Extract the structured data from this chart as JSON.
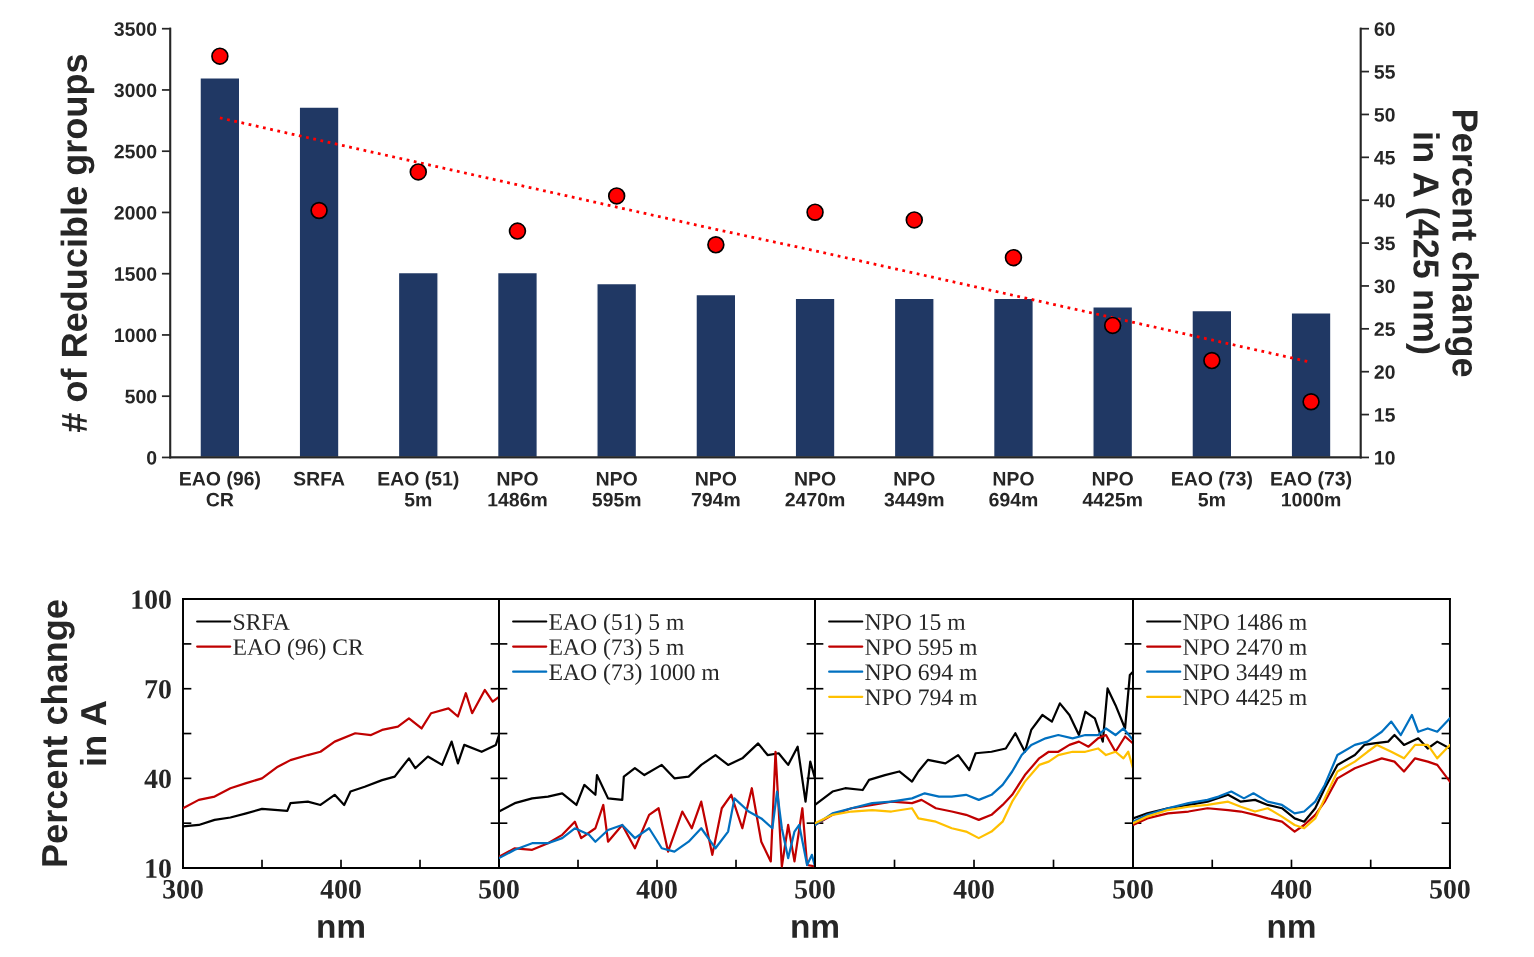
{
  "chart_data": [
    {
      "type": "bar",
      "categories": [
        "EAO (96)\nCR",
        "SRFA",
        "EAO (51)\n5m",
        "NPO\n1486m",
        "NPO\n595m",
        "NPO\n794m",
        "NPO\n2470m",
        "NPO\n3449m",
        "NPO\n694m",
        "NPO\n4425m",
        "EAO (73)\n5m",
        "EAO (73)\n1000m"
      ],
      "ylabel": "# of Reducible groups",
      "y2label": "Percent change\nin A (425 nm)",
      "ylim": [
        0,
        3500
      ],
      "yticks": [
        0,
        500,
        1000,
        1500,
        2000,
        2500,
        3000,
        3500
      ],
      "y2lim": [
        10,
        60
      ],
      "y2ticks": [
        10,
        15,
        20,
        25,
        30,
        35,
        40,
        45,
        50,
        55,
        60
      ],
      "grid": false,
      "legend": false,
      "series": [
        {
          "type": "bar",
          "color": "#203864",
          "values": [
            3100,
            2860,
            1510,
            1510,
            1420,
            1330,
            1300,
            1300,
            1300,
            1230,
            1200,
            1180
          ]
        },
        {
          "type": "scatter",
          "axis": "y2",
          "color": "#ff0000",
          "marker": "circle",
          "values": [
            56.8,
            38.8,
            43.3,
            36.4,
            40.5,
            34.8,
            38.6,
            37.7,
            33.3,
            25.4,
            21.3,
            16.5
          ]
        },
        {
          "type": "line",
          "axis": "y2",
          "color": "#ff0000",
          "line_style": "dotted",
          "values": [
            49.6,
            47.0,
            44.4,
            41.8,
            39.2,
            36.6,
            34.1,
            31.5,
            28.9,
            26.3,
            23.7,
            21.1
          ]
        }
      ]
    },
    {
      "type": "line",
      "ylabel": "Percent change\nin A",
      "xlabel": "nm",
      "xlim": [
        300,
        500
      ],
      "xticks": [
        300,
        {
          "value": 350,
          "label": null
        },
        400,
        {
          "value": 450,
          "label": null
        },
        500
      ],
      "ylim": [
        10,
        100
      ],
      "yticks": [
        10,
        {
          "value": 25,
          "label": null
        },
        40,
        {
          "value": 55,
          "label": null
        },
        70,
        {
          "value": 85,
          "label": null
        },
        100
      ],
      "legend": "top left",
      "grid": false,
      "series": [
        {
          "name": "SRFA",
          "color": "#000000",
          "x": [
            300,
            310,
            320,
            330,
            340,
            350,
            360,
            366,
            368,
            379,
            387,
            396,
            402,
            406,
            415,
            426,
            434,
            443,
            447,
            455,
            464,
            470,
            474,
            478,
            489,
            498,
            500
          ],
          "values": [
            23.9,
            24.4,
            26.1,
            26.9,
            28.3,
            29.8,
            29.4,
            29.1,
            31.7,
            32.2,
            31.1,
            34.5,
            31.1,
            35.6,
            37.2,
            39.4,
            40.6,
            46.7,
            43.4,
            47.3,
            44.5,
            52.3,
            45.0,
            51.2,
            48.9,
            51.2,
            54.5
          ]
        },
        {
          "name": "EAO (96) CR",
          "color": "#c00000",
          "x": [
            300,
            310,
            320,
            330,
            340,
            350,
            360,
            368,
            379,
            387,
            396,
            409,
            419,
            426,
            436,
            443,
            451,
            457,
            468,
            474,
            479,
            483,
            491,
            496,
            500
          ],
          "values": [
            30.0,
            32.8,
            33.9,
            36.7,
            38.4,
            40.0,
            43.9,
            46.1,
            47.8,
            48.9,
            52.3,
            55.1,
            54.5,
            56.2,
            57.3,
            60.1,
            56.7,
            61.8,
            63.4,
            60.7,
            68.5,
            61.8,
            69.6,
            65.7,
            67.3
          ]
        }
      ]
    },
    {
      "type": "line",
      "xlabel": "nm",
      "xlim": [
        300,
        500
      ],
      "xticks": [
        {
          "value": 300,
          "label": null
        },
        {
          "value": 350,
          "label": null
        },
        400,
        {
          "value": 450,
          "label": null
        },
        500
      ],
      "ylim": [
        10,
        100
      ],
      "yticks": [
        10,
        {
          "value": 25,
          "label": null
        },
        40,
        {
          "value": 55,
          "label": null
        },
        70,
        {
          "value": 85,
          "label": null
        },
        100
      ],
      "tick_labels": "x",
      "legend": "top left",
      "grid": false,
      "series": [
        {
          "name": "EAO (51) 5 m",
          "color": "#000000",
          "x": [
            300,
            310,
            321,
            331,
            340,
            349,
            354,
            361,
            362,
            369,
            378,
            379,
            386,
            392,
            403,
            411,
            420,
            428,
            437,
            445,
            454,
            464,
            470,
            477,
            483,
            489,
            494,
            497,
            500
          ],
          "values": [
            28.9,
            31.7,
            33.3,
            33.9,
            35.0,
            31.1,
            37.8,
            34.5,
            41.1,
            33.3,
            32.8,
            40.6,
            43.4,
            41.1,
            44.5,
            40.0,
            40.6,
            44.5,
            47.8,
            44.5,
            46.7,
            51.7,
            47.8,
            48.4,
            44.5,
            50.6,
            32.2,
            45.6,
            40.0
          ]
        },
        {
          "name": "EAO (73) 5 m",
          "color": "#c00000",
          "x": [
            300,
            310,
            321,
            331,
            340,
            348,
            352,
            361,
            366,
            369,
            378,
            386,
            395,
            401,
            407,
            416,
            422,
            428,
            435,
            441,
            447,
            454,
            460,
            466,
            472,
            475,
            479,
            483,
            487,
            492,
            495,
            500
          ],
          "values": [
            13.8,
            16.6,
            16.1,
            18.3,
            21.1,
            25.5,
            20.0,
            23.3,
            31.1,
            18.8,
            24.4,
            16.6,
            27.8,
            30.0,
            15.5,
            28.9,
            23.3,
            32.2,
            14.4,
            30.0,
            34.5,
            23.3,
            36.7,
            18.8,
            12.2,
            48.9,
            10.5,
            24.4,
            12.2,
            30.0,
            11.0,
            10.5
          ]
        },
        {
          "name": "EAO (73) 1000 m",
          "color": "#0070c0",
          "x": [
            300,
            310,
            321,
            331,
            340,
            348,
            357,
            361,
            369,
            378,
            386,
            395,
            403,
            411,
            420,
            428,
            437,
            445,
            449,
            458,
            466,
            473,
            476,
            479,
            483,
            487,
            490,
            495,
            498,
            500
          ],
          "values": [
            13.3,
            16.1,
            18.3,
            18.3,
            20.0,
            23.3,
            21.1,
            18.8,
            22.7,
            24.4,
            20.0,
            23.3,
            16.6,
            15.5,
            18.8,
            23.3,
            16.6,
            22.2,
            33.3,
            28.9,
            26.6,
            23.3,
            35.6,
            23.3,
            13.3,
            22.2,
            24.4,
            11.0,
            14.4,
            10.5
          ]
        }
      ]
    },
    {
      "type": "line",
      "xlim": [
        300,
        500
      ],
      "xticks": [
        {
          "value": 300,
          "label": null
        },
        {
          "value": 350,
          "label": null
        },
        400,
        {
          "value": 450,
          "label": null
        },
        500
      ],
      "ylim": [
        10,
        100
      ],
      "yticks": [
        10,
        {
          "value": 25,
          "label": null
        },
        40,
        {
          "value": 55,
          "label": null
        },
        70,
        {
          "value": 85,
          "label": null
        },
        100
      ],
      "tick_labels": "x",
      "legend": "top left",
      "grid": false,
      "series": [
        {
          "name": "NPO 15 m",
          "color": "#000000",
          "x": [
            300,
            311,
            319,
            330,
            334,
            344,
            353,
            361,
            365,
            371,
            382,
            390,
            397,
            401,
            411,
            420,
            426,
            432,
            436,
            443,
            449,
            454,
            460,
            466,
            470,
            476,
            481,
            484,
            489,
            495,
            498,
            500
          ],
          "values": [
            31.1,
            35.6,
            36.7,
            36.1,
            39.5,
            41.1,
            42.3,
            38.9,
            42.3,
            46.2,
            45.0,
            47.8,
            42.8,
            48.4,
            48.9,
            50.0,
            55.1,
            48.9,
            56.2,
            61.2,
            59.0,
            65.1,
            61.2,
            54.5,
            62.3,
            60.1,
            52.3,
            70.1,
            64.5,
            56.7,
            74.6,
            75.7
          ]
        },
        {
          "name": "NPO 595 m",
          "color": "#c00000",
          "x": [
            300,
            311,
            323,
            336,
            348,
            361,
            367,
            376,
            386,
            395,
            403,
            411,
            418,
            424,
            432,
            441,
            447,
            453,
            460,
            466,
            472,
            478,
            483,
            489,
            495,
            500
          ],
          "values": [
            24.4,
            27.8,
            30.0,
            31.1,
            32.2,
            31.7,
            32.8,
            30.0,
            28.9,
            27.8,
            26.1,
            27.8,
            31.1,
            34.5,
            41.1,
            46.7,
            48.9,
            48.9,
            51.2,
            52.3,
            50.6,
            53.4,
            54.5,
            48.9,
            54.0,
            51.7
          ]
        },
        {
          "name": "NPO 694 m",
          "color": "#0070c0",
          "x": [
            300,
            311,
            323,
            336,
            348,
            361,
            369,
            378,
            386,
            395,
            403,
            411,
            418,
            424,
            430,
            436,
            445,
            453,
            462,
            470,
            478,
            483,
            489,
            494,
            500
          ],
          "values": [
            24.4,
            28.3,
            30.0,
            31.7,
            32.2,
            33.3,
            35.0,
            33.9,
            33.9,
            34.5,
            32.8,
            34.5,
            37.8,
            42.3,
            47.8,
            51.2,
            53.4,
            54.5,
            53.4,
            54.5,
            54.5,
            56.7,
            54.5,
            56.7,
            52.8
          ]
        },
        {
          "name": "NPO 794 m",
          "color": "#ffc000",
          "x": [
            300,
            311,
            323,
            336,
            348,
            361,
            365,
            376,
            386,
            395,
            403,
            411,
            418,
            424,
            432,
            441,
            447,
            453,
            462,
            470,
            478,
            483,
            489,
            494,
            497,
            500
          ],
          "values": [
            25.0,
            27.8,
            28.9,
            29.4,
            28.9,
            30.0,
            26.6,
            25.5,
            23.3,
            22.2,
            20.0,
            22.2,
            25.5,
            32.2,
            38.9,
            44.5,
            45.6,
            47.8,
            48.9,
            48.9,
            50.0,
            47.8,
            48.9,
            46.7,
            48.9,
            43.4
          ]
        }
      ]
    },
    {
      "type": "line",
      "xlabel": "nm",
      "xlim": [
        300,
        500
      ],
      "xticks": [
        {
          "value": 300,
          "label": null
        },
        {
          "value": 350,
          "label": null
        },
        400,
        {
          "value": 450,
          "label": null
        },
        500
      ],
      "ylim": [
        10,
        100
      ],
      "yticks": [
        10,
        {
          "value": 25,
          "label": null
        },
        40,
        {
          "value": 55,
          "label": null
        },
        70,
        {
          "value": 85,
          "label": null
        },
        100
      ],
      "tick_labels": "x",
      "legend": "top left",
      "grid": false,
      "series": [
        {
          "name": "NPO 1486 m",
          "color": "#000000",
          "x": [
            300,
            309,
            322,
            335,
            347,
            360,
            368,
            377,
            385,
            394,
            402,
            408,
            415,
            421,
            429,
            440,
            446,
            452,
            461,
            465,
            471,
            480,
            486,
            492,
            500
          ],
          "values": [
            26.6,
            28.3,
            30.0,
            31.1,
            32.2,
            34.5,
            32.2,
            32.8,
            31.1,
            30.0,
            26.6,
            25.5,
            30.0,
            36.7,
            44.5,
            47.8,
            51.2,
            51.7,
            52.3,
            54.5,
            51.2,
            53.4,
            50.0,
            52.3,
            50.0
          ]
        },
        {
          "name": "NPO 2470 m",
          "color": "#c00000",
          "x": [
            300,
            309,
            322,
            335,
            347,
            360,
            368,
            377,
            385,
            394,
            402,
            408,
            415,
            421,
            429,
            440,
            448,
            457,
            465,
            471,
            478,
            486,
            492,
            500
          ],
          "values": [
            24.4,
            26.6,
            28.3,
            28.9,
            30.0,
            29.4,
            28.9,
            27.8,
            26.6,
            25.5,
            22.2,
            24.4,
            27.8,
            32.2,
            40.0,
            43.4,
            45.0,
            46.7,
            45.6,
            42.3,
            46.7,
            45.6,
            44.5,
            38.9
          ]
        },
        {
          "name": "NPO 3449 m",
          "color": "#0070c0",
          "x": [
            300,
            309,
            322,
            335,
            347,
            354,
            362,
            370,
            376,
            385,
            394,
            402,
            408,
            415,
            421,
            429,
            440,
            448,
            457,
            463,
            469,
            476,
            480,
            486,
            492,
            500
          ],
          "values": [
            25.5,
            27.8,
            30.0,
            31.7,
            32.8,
            33.9,
            35.6,
            33.3,
            35.0,
            32.2,
            31.1,
            28.3,
            28.9,
            32.2,
            37.8,
            47.8,
            51.2,
            52.3,
            55.6,
            59.0,
            54.5,
            61.2,
            55.6,
            56.7,
            55.6,
            60.1
          ]
        },
        {
          "name": "NPO 4425 m",
          "color": "#ffc000",
          "x": [
            300,
            309,
            322,
            335,
            347,
            360,
            368,
            377,
            385,
            394,
            402,
            408,
            415,
            421,
            429,
            440,
            448,
            454,
            463,
            471,
            478,
            486,
            492,
            500
          ],
          "values": [
            25.0,
            27.2,
            29.4,
            30.5,
            31.1,
            32.2,
            30.5,
            28.9,
            30.0,
            27.2,
            24.4,
            23.3,
            26.6,
            33.3,
            42.3,
            45.6,
            48.9,
            51.2,
            48.9,
            46.7,
            51.2,
            51.2,
            46.7,
            51.2
          ]
        }
      ]
    }
  ]
}
